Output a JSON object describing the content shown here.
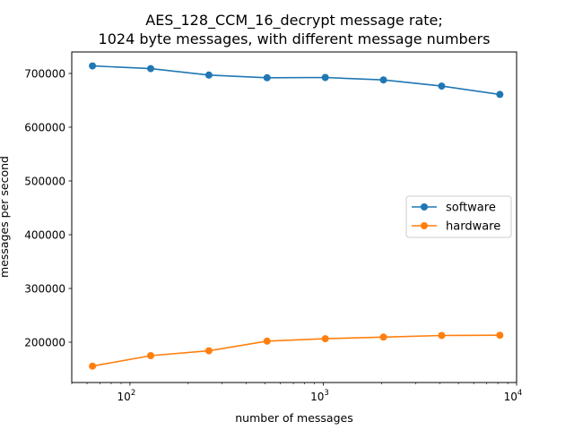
{
  "chart_data": {
    "type": "line",
    "title_line1": "AES_128_CCM_16_decrypt message rate;",
    "title_line2": "1024 byte messages, with different message numbers",
    "xlabel": "number of messages",
    "ylabel": "messages per second",
    "xscale": "log",
    "xlim": [
      50,
      10000
    ],
    "ylim": [
      125000,
      740000
    ],
    "x": [
      64,
      128,
      256,
      512,
      1024,
      2048,
      4096,
      8192
    ],
    "x_ticks": [
      100,
      1000,
      10000
    ],
    "x_tick_labels": [
      {
        "base": "10",
        "exp": "2"
      },
      {
        "base": "10",
        "exp": "3"
      },
      {
        "base": "10",
        "exp": "4"
      }
    ],
    "y_ticks": [
      200000,
      300000,
      400000,
      500000,
      600000,
      700000
    ],
    "y_tick_labels": [
      "200000",
      "300000",
      "400000",
      "500000",
      "600000",
      "700000"
    ],
    "grid": false,
    "legend_position": "center-right",
    "series": [
      {
        "name": "software",
        "color": "#1f77b4",
        "values": [
          714000,
          709000,
          697000,
          692000,
          692500,
          688000,
          676500,
          661000
        ]
      },
      {
        "name": "hardware",
        "color": "#ff7f0e",
        "values": [
          155500,
          175000,
          184000,
          202000,
          206500,
          209500,
          212500,
          213000
        ]
      }
    ]
  }
}
